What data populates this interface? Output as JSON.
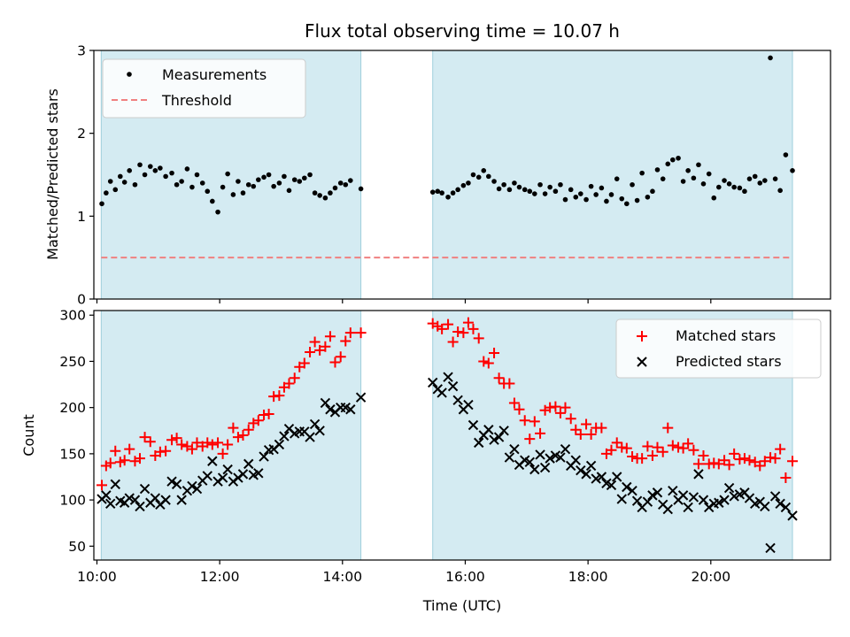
{
  "chart_data": [
    {
      "type": "scatter",
      "title": "Flux total observing time = 10.07 h",
      "xlabel": "",
      "ylabel": "Matched/Predicted stars",
      "xlim": [
        9.95,
        21.95
      ],
      "ylim": [
        0,
        3
      ],
      "yticks": [
        "0",
        "1",
        "2",
        "3"
      ],
      "shaded_intervals": [
        [
          10.07,
          14.3
        ],
        [
          15.47,
          21.33
        ]
      ],
      "legend": [
        "Measurements",
        "Threshold"
      ],
      "threshold": 0.5,
      "series": [
        {
          "name": "Measurements",
          "x": [
            10.08,
            10.15,
            10.22,
            10.3,
            10.38,
            10.45,
            10.53,
            10.62,
            10.7,
            10.78,
            10.87,
            10.95,
            11.03,
            11.12,
            11.22,
            11.3,
            11.38,
            11.47,
            11.55,
            11.63,
            11.72,
            11.8,
            11.88,
            11.97,
            12.05,
            12.13,
            12.22,
            12.3,
            12.38,
            12.47,
            12.55,
            12.63,
            12.72,
            12.8,
            12.88,
            12.97,
            13.05,
            13.13,
            13.22,
            13.3,
            13.38,
            13.47,
            13.55,
            13.63,
            13.72,
            13.8,
            13.88,
            13.97,
            14.05,
            14.13,
            14.3,
            15.47,
            15.55,
            15.62,
            15.72,
            15.8,
            15.88,
            15.97,
            16.05,
            16.13,
            16.22,
            16.3,
            16.38,
            16.47,
            16.55,
            16.63,
            16.72,
            16.8,
            16.88,
            16.97,
            17.05,
            17.13,
            17.22,
            17.3,
            17.38,
            17.47,
            17.55,
            17.63,
            17.72,
            17.8,
            17.88,
            17.97,
            18.05,
            18.13,
            18.22,
            18.3,
            18.38,
            18.47,
            18.55,
            18.63,
            18.72,
            18.8,
            18.88,
            18.97,
            19.05,
            19.13,
            19.22,
            19.3,
            19.38,
            19.47,
            19.55,
            19.63,
            19.72,
            19.8,
            19.88,
            19.97,
            20.05,
            20.13,
            20.22,
            20.3,
            20.38,
            20.47,
            20.55,
            20.63,
            20.72,
            20.8,
            20.88,
            20.97,
            21.05,
            21.13,
            21.22,
            21.33
          ],
          "values": [
            1.15,
            1.28,
            1.42,
            1.32,
            1.48,
            1.41,
            1.55,
            1.38,
            1.62,
            1.5,
            1.6,
            1.55,
            1.58,
            1.48,
            1.52,
            1.38,
            1.42,
            1.57,
            1.35,
            1.5,
            1.4,
            1.3,
            1.18,
            1.05,
            1.35,
            1.51,
            1.26,
            1.42,
            1.28,
            1.38,
            1.36,
            1.44,
            1.47,
            1.5,
            1.36,
            1.4,
            1.48,
            1.31,
            1.44,
            1.42,
            1.46,
            1.5,
            1.28,
            1.25,
            1.22,
            1.28,
            1.34,
            1.4,
            1.38,
            1.43,
            1.33,
            1.29,
            1.3,
            1.28,
            1.23,
            1.28,
            1.32,
            1.37,
            1.4,
            1.5,
            1.47,
            1.55,
            1.48,
            1.42,
            1.33,
            1.38,
            1.32,
            1.4,
            1.35,
            1.32,
            1.3,
            1.27,
            1.38,
            1.27,
            1.35,
            1.3,
            1.38,
            1.2,
            1.32,
            1.23,
            1.27,
            1.2,
            1.36,
            1.26,
            1.34,
            1.18,
            1.26,
            1.45,
            1.21,
            1.15,
            1.38,
            1.19,
            1.52,
            1.23,
            1.3,
            1.56,
            1.45,
            1.63,
            1.68,
            1.7,
            1.42,
            1.55,
            1.46,
            1.62,
            1.39,
            1.51,
            1.22,
            1.35,
            1.43,
            1.39,
            1.35,
            1.34,
            1.3,
            1.45,
            1.48,
            1.4,
            1.43,
            2.91,
            1.45,
            1.31,
            1.74,
            1.55
          ]
        }
      ]
    },
    {
      "type": "scatter",
      "title": "",
      "xlabel": "Time (UTC)",
      "ylabel": "Count",
      "xlim": [
        9.95,
        21.95
      ],
      "ylim": [
        35,
        305
      ],
      "yticks": [
        "50",
        "100",
        "150",
        "200",
        "250",
        "300"
      ],
      "xticks": [
        10,
        12,
        14,
        16,
        18,
        20
      ],
      "xtick_labels": [
        "10:00",
        "12:00",
        "14:00",
        "16:00",
        "18:00",
        "20:00"
      ],
      "shaded_intervals": [
        [
          10.07,
          14.3
        ],
        [
          15.47,
          21.33
        ]
      ],
      "legend": [
        "Matched stars",
        "Predicted stars"
      ],
      "series": [
        {
          "name": "Matched stars",
          "x": [
            10.08,
            10.15,
            10.22,
            10.3,
            10.38,
            10.45,
            10.53,
            10.62,
            10.7,
            10.78,
            10.87,
            10.95,
            11.03,
            11.12,
            11.22,
            11.3,
            11.38,
            11.47,
            11.55,
            11.63,
            11.72,
            11.8,
            11.88,
            11.97,
            12.05,
            12.13,
            12.22,
            12.3,
            12.38,
            12.47,
            12.55,
            12.63,
            12.72,
            12.8,
            12.88,
            12.97,
            13.05,
            13.13,
            13.22,
            13.3,
            13.38,
            13.47,
            13.55,
            13.63,
            13.72,
            13.8,
            13.88,
            13.97,
            14.05,
            14.13,
            14.3,
            15.47,
            15.55,
            15.62,
            15.72,
            15.8,
            15.88,
            15.97,
            16.05,
            16.13,
            16.22,
            16.3,
            16.38,
            16.47,
            16.55,
            16.63,
            16.72,
            16.8,
            16.88,
            16.97,
            17.05,
            17.13,
            17.22,
            17.3,
            17.38,
            17.47,
            17.55,
            17.63,
            17.72,
            17.8,
            17.88,
            17.97,
            18.05,
            18.13,
            18.22,
            18.3,
            18.38,
            18.47,
            18.55,
            18.63,
            18.72,
            18.8,
            18.88,
            18.97,
            19.05,
            19.13,
            19.22,
            19.3,
            19.38,
            19.47,
            19.55,
            19.63,
            19.72,
            19.8,
            19.88,
            19.97,
            20.05,
            20.13,
            20.22,
            20.3,
            20.38,
            20.47,
            20.55,
            20.63,
            20.72,
            20.8,
            20.88,
            20.97,
            21.05,
            21.13,
            21.22,
            21.33
          ],
          "values": [
            116,
            137,
            140,
            153,
            141,
            143,
            155,
            142,
            145,
            168,
            163,
            148,
            152,
            153,
            165,
            167,
            160,
            158,
            155,
            162,
            158,
            162,
            160,
            162,
            150,
            160,
            178,
            168,
            170,
            176,
            183,
            186,
            192,
            193,
            212,
            213,
            222,
            226,
            232,
            244,
            248,
            260,
            271,
            262,
            266,
            277,
            249,
            255,
            272,
            281,
            281,
            291,
            288,
            285,
            290,
            271,
            282,
            281,
            292,
            285,
            275,
            250,
            248,
            259,
            232,
            226,
            226,
            205,
            198,
            186,
            166,
            185,
            172,
            197,
            200,
            201,
            194,
            200,
            188,
            176,
            171,
            182,
            171,
            178,
            178,
            150,
            154,
            162,
            157,
            156,
            147,
            145,
            145,
            158,
            148,
            157,
            152,
            178,
            159,
            157,
            156,
            161,
            154,
            139,
            148,
            139,
            140,
            139,
            143,
            138,
            150,
            144,
            145,
            143,
            141,
            137,
            142,
            146,
            145,
            155,
            124,
            142
          ]
        },
        {
          "name": "Predicted stars",
          "x": [
            10.08,
            10.15,
            10.22,
            10.3,
            10.38,
            10.45,
            10.53,
            10.62,
            10.7,
            10.78,
            10.87,
            10.95,
            11.03,
            11.12,
            11.22,
            11.3,
            11.38,
            11.47,
            11.55,
            11.63,
            11.72,
            11.8,
            11.88,
            11.97,
            12.05,
            12.13,
            12.22,
            12.3,
            12.38,
            12.47,
            12.55,
            12.63,
            12.72,
            12.8,
            12.88,
            12.97,
            13.05,
            13.13,
            13.22,
            13.3,
            13.38,
            13.47,
            13.55,
            13.63,
            13.72,
            13.8,
            13.88,
            13.97,
            14.05,
            14.13,
            14.3,
            15.47,
            15.55,
            15.62,
            15.72,
            15.8,
            15.88,
            15.97,
            16.05,
            16.13,
            16.22,
            16.3,
            16.38,
            16.47,
            16.55,
            16.63,
            16.72,
            16.8,
            16.88,
            16.97,
            17.05,
            17.13,
            17.22,
            17.3,
            17.38,
            17.47,
            17.55,
            17.63,
            17.72,
            17.8,
            17.88,
            17.97,
            18.05,
            18.13,
            18.22,
            18.3,
            18.38,
            18.47,
            18.55,
            18.63,
            18.72,
            18.8,
            18.88,
            18.97,
            19.05,
            19.13,
            19.22,
            19.3,
            19.38,
            19.47,
            19.55,
            19.63,
            19.72,
            19.8,
            19.88,
            19.97,
            20.05,
            20.13,
            20.22,
            20.3,
            20.38,
            20.47,
            20.55,
            20.63,
            20.72,
            20.8,
            20.88,
            20.97,
            21.05,
            21.13,
            21.22,
            21.33
          ],
          "values": [
            101,
            105,
            96,
            117,
            99,
            97,
            102,
            100,
            93,
            112,
            97,
            102,
            95,
            100,
            120,
            117,
            100,
            110,
            115,
            112,
            121,
            126,
            142,
            120,
            124,
            133,
            120,
            124,
            128,
            139,
            127,
            129,
            147,
            154,
            155,
            160,
            169,
            177,
            172,
            174,
            174,
            168,
            182,
            175,
            205,
            198,
            195,
            200,
            200,
            198,
            211,
            227,
            220,
            216,
            233,
            223,
            208,
            198,
            203,
            181,
            162,
            170,
            176,
            165,
            168,
            175,
            146,
            155,
            138,
            143,
            141,
            133,
            149,
            135,
            145,
            148,
            146,
            155,
            137,
            143,
            132,
            128,
            137,
            123,
            125,
            118,
            116,
            125,
            101,
            114,
            110,
            99,
            92,
            98,
            105,
            108,
            95,
            90,
            110,
            100,
            105,
            92,
            103,
            128,
            100,
            92,
            96,
            97,
            100,
            113,
            104,
            106,
            108,
            102,
            96,
            98,
            93,
            48,
            104,
            96,
            92,
            83
          ]
        }
      ]
    }
  ]
}
